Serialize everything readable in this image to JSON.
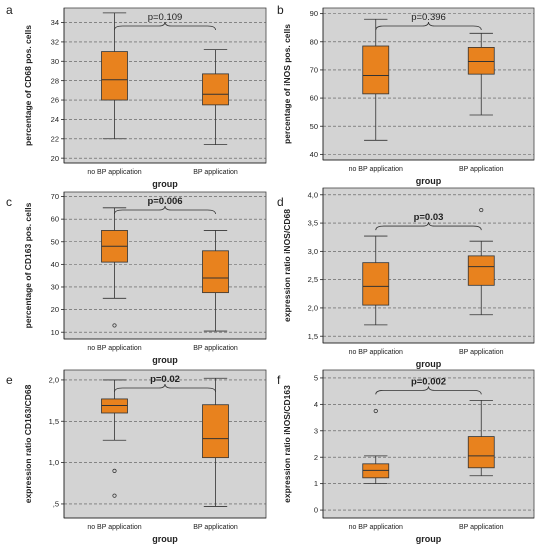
{
  "chart_data": [
    {
      "type": "box",
      "panel": "a",
      "ylabel": "percentage of CD68 pos. cells",
      "xlabel": "group",
      "categories": [
        "no BP application",
        "BP application"
      ],
      "ylim": [
        19.5,
        35.5
      ],
      "yticks": [
        20,
        22,
        24,
        26,
        28,
        30,
        32,
        34
      ],
      "tick_labels": [
        "20",
        "22",
        "24",
        "26",
        "28",
        "30",
        "32",
        "34"
      ],
      "boxes": [
        {
          "min": 22.0,
          "q1": 26.0,
          "median": 28.1,
          "q3": 31.0,
          "max": 35.0,
          "outliers": []
        },
        {
          "min": 21.4,
          "q1": 25.5,
          "median": 26.6,
          "q3": 28.7,
          "max": 31.2,
          "outliers": []
        }
      ],
      "pvalue": "p=0.109",
      "pvalue_bold": false
    },
    {
      "type": "box",
      "panel": "b",
      "ylabel": "percentage of iNOS pos. cells",
      "xlabel": "group",
      "categories": [
        "no BP application",
        "BP application"
      ],
      "ylim": [
        38,
        92
      ],
      "yticks": [
        40,
        50,
        60,
        70,
        80,
        90
      ],
      "tick_labels": [
        "40",
        "50",
        "60",
        "70",
        "80",
        "90"
      ],
      "boxes": [
        {
          "min": 45.0,
          "q1": 61.5,
          "median": 68.0,
          "q3": 78.5,
          "max": 88.0,
          "outliers": []
        },
        {
          "min": 54.0,
          "q1": 68.5,
          "median": 73.0,
          "q3": 78.0,
          "max": 83.0,
          "outliers": []
        }
      ],
      "pvalue": "p=0.396",
      "pvalue_bold": false
    },
    {
      "type": "box",
      "panel": "c",
      "ylabel": "percentage of CD163 pos. cells",
      "xlabel": "group",
      "categories": [
        "no BP application",
        "BP application"
      ],
      "ylim": [
        7,
        72
      ],
      "yticks": [
        10,
        20,
        30,
        40,
        50,
        60,
        70
      ],
      "tick_labels": [
        "10",
        "20",
        "30",
        "40",
        "50",
        "60",
        "70"
      ],
      "boxes": [
        {
          "min": 25.0,
          "q1": 41.0,
          "median": 48.0,
          "q3": 55.0,
          "max": 65.0,
          "outliers": [
            13.0
          ]
        },
        {
          "min": 10.5,
          "q1": 27.5,
          "median": 34.0,
          "q3": 46.0,
          "max": 55.0,
          "outliers": []
        }
      ],
      "pvalue": "p=0.006",
      "pvalue_bold": true
    },
    {
      "type": "box",
      "panel": "d",
      "ylabel": "expression ratio iNOS/CD68",
      "xlabel": "group",
      "categories": [
        "no BP application",
        "BP application"
      ],
      "ylim": [
        1.38,
        4.12
      ],
      "yticks": [
        1.5,
        2.0,
        2.5,
        3.0,
        3.5,
        4.0
      ],
      "tick_labels": [
        "1,5",
        "2,0",
        "2,5",
        "3,0",
        "3,5",
        "4,0"
      ],
      "boxes": [
        {
          "min": 1.7,
          "q1": 2.05,
          "median": 2.38,
          "q3": 2.8,
          "max": 3.27,
          "outliers": []
        },
        {
          "min": 1.88,
          "q1": 2.4,
          "median": 2.73,
          "q3": 2.92,
          "max": 3.18,
          "outliers": [
            3.73
          ]
        }
      ],
      "pvalue": "p=0.03",
      "pvalue_bold": true
    },
    {
      "type": "box",
      "panel": "e",
      "ylabel": "expression ratio CD163/CD68",
      "xlabel": "group",
      "categories": [
        "no BP application",
        "BP application"
      ],
      "ylim": [
        0.33,
        2.12
      ],
      "yticks": [
        0.5,
        1.0,
        1.5,
        2.0
      ],
      "tick_labels": [
        ",5",
        "1,0",
        "1,5",
        "2,0"
      ],
      "boxes": [
        {
          "min": 1.27,
          "q1": 1.6,
          "median": 1.69,
          "q3": 1.77,
          "max": 2.0,
          "outliers": [
            0.9,
            0.6
          ]
        },
        {
          "min": 0.47,
          "q1": 1.06,
          "median": 1.29,
          "q3": 1.7,
          "max": 2.02,
          "outliers": []
        }
      ],
      "pvalue": "p=0.02",
      "pvalue_bold": true
    },
    {
      "type": "box",
      "panel": "f",
      "ylabel": "expression ratio iNOS/CD163",
      "xlabel": "group",
      "categories": [
        "no BP application",
        "BP application"
      ],
      "ylim": [
        -0.3,
        5.3
      ],
      "yticks": [
        0,
        1,
        2,
        3,
        4,
        5
      ],
      "tick_labels": [
        "0",
        "1",
        "2",
        "3",
        "4",
        "5"
      ],
      "boxes": [
        {
          "min": 1.0,
          "q1": 1.22,
          "median": 1.5,
          "q3": 1.75,
          "max": 2.05,
          "outliers": [
            3.75
          ]
        },
        {
          "min": 1.3,
          "q1": 1.6,
          "median": 2.05,
          "q3": 2.78,
          "max": 4.15,
          "outliers": []
        }
      ],
      "pvalue": "p=0.002",
      "pvalue_bold": true
    }
  ]
}
